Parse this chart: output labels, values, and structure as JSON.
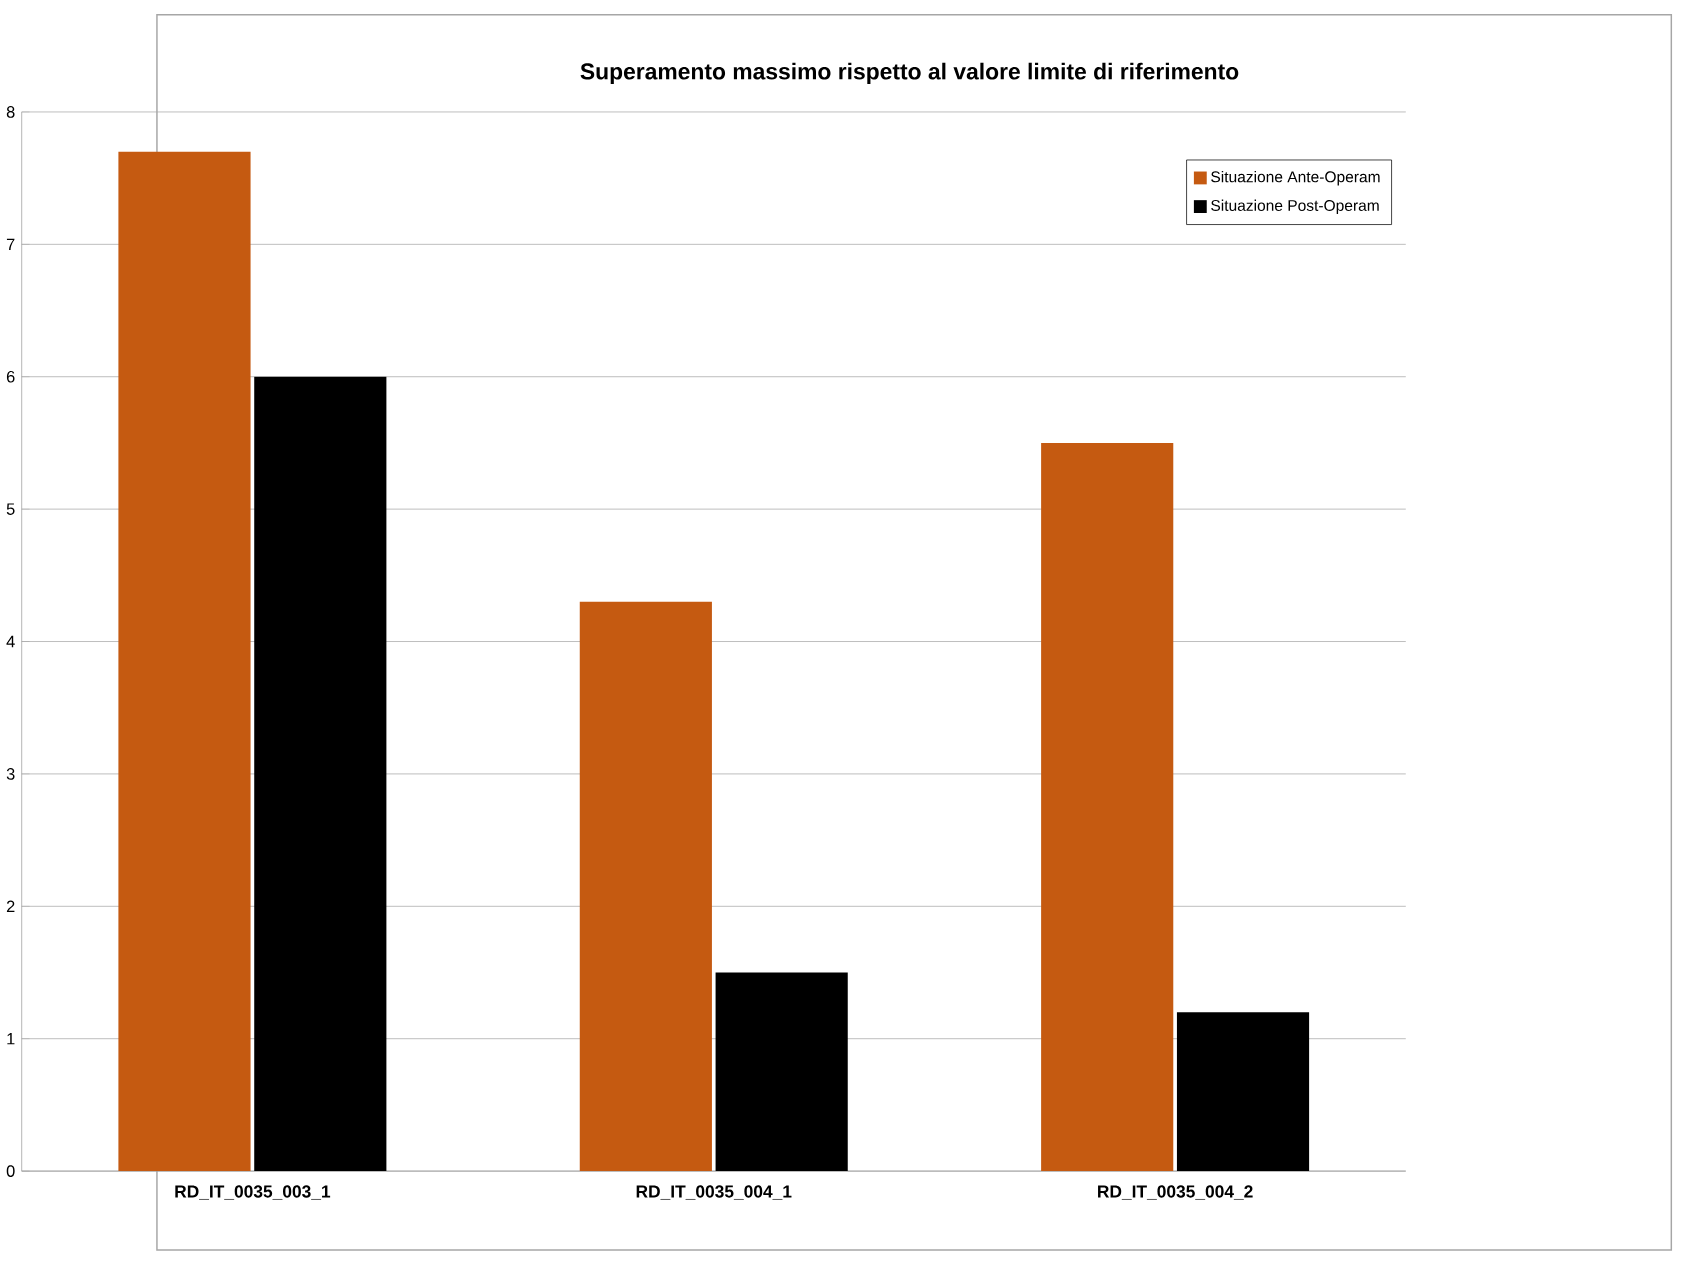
{
  "chart_data": {
    "type": "bar",
    "title": "Superamento massimo rispetto al valore limite di riferimento",
    "categories": [
      "RD_IT_0035_003_1",
      "RD_IT_0035_004_1",
      "RD_IT_0035_004_2"
    ],
    "series": [
      {
        "name": "Situazione Ante-Operam",
        "color": "#c55a11",
        "values": [
          7.7,
          4.3,
          5.5
        ]
      },
      {
        "name": "Situazione Post-Operam",
        "color": "#000000",
        "values": [
          6.0,
          1.5,
          1.2
        ]
      }
    ],
    "ylim": [
      0,
      8
    ],
    "yticks": [
      0,
      1,
      2,
      3,
      4,
      5,
      6,
      7,
      8
    ],
    "grid": "y",
    "legend": "top right"
  }
}
